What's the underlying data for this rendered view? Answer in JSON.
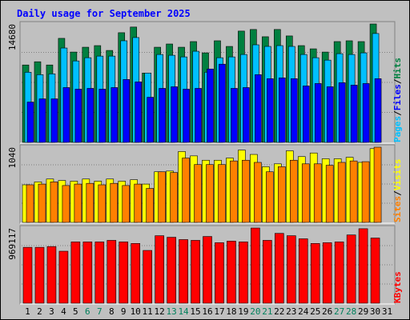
{
  "chart_data": {
    "type": "bar",
    "title": "Daily usage for September 2025",
    "days": [
      "1",
      "2",
      "3",
      "4",
      "5",
      "6",
      "7",
      "8",
      "9",
      "10",
      "11",
      "12",
      "13",
      "14",
      "15",
      "16",
      "17",
      "18",
      "19",
      "20",
      "21",
      "22",
      "23",
      "24",
      "25",
      "26",
      "27",
      "28",
      "29",
      "30",
      "31"
    ],
    "weekend_days": [
      "6",
      "7",
      "13",
      "14",
      "20",
      "21",
      "27",
      "28"
    ],
    "panels": [
      {
        "id": "hits-files-pages",
        "ymax_label": "14680",
        "ymax": 14680,
        "legend": [
          "Pages",
          "/",
          "Files",
          "/",
          "Hits"
        ],
        "series": [
          {
            "name": "Hits",
            "color": "#008040",
            "values": [
              9600,
              10000,
              9600,
              12900,
              11200,
              11800,
              12000,
              11400,
              13600,
              14300,
              8600,
              11800,
              12200,
              11800,
              12500,
              11100,
              12600,
              11900,
              13800,
              14000,
              13100,
              14000,
              13200,
              12000,
              11600,
              11200,
              12500,
              12600,
              12500,
              14680,
              null
            ]
          },
          {
            "name": "Files",
            "color": "#00c0ff",
            "values": [
              8700,
              8400,
              8500,
              11700,
              10100,
              10500,
              10700,
              10700,
              12600,
              13000,
              8600,
              10900,
              10800,
              10600,
              11300,
              8700,
              10500,
              10600,
              10900,
              12100,
              11900,
              12000,
              11900,
              10900,
              10500,
              10200,
              11000,
              10900,
              11100,
              13500,
              null
            ]
          },
          {
            "name": "Pages",
            "color": "#0000ff",
            "values": [
              5000,
              5400,
              5400,
              6800,
              6600,
              6700,
              6600,
              6800,
              7800,
              7500,
              5600,
              6700,
              6900,
              6600,
              6700,
              9100,
              9700,
              6700,
              6800,
              8400,
              7900,
              8000,
              7900,
              7000,
              7300,
              6900,
              7400,
              7100,
              7300,
              7900,
              null
            ]
          }
        ]
      },
      {
        "id": "visits-sites",
        "ymax_label": "1040",
        "ymax": 1040,
        "legend": [
          "Sites",
          "/",
          "Visits"
        ],
        "series": [
          {
            "name": "Visits",
            "color": "#ffff00",
            "values": [
              520,
              560,
              600,
              580,
              570,
              600,
              570,
              600,
              570,
              590,
              530,
              700,
              710,
              980,
              920,
              860,
              860,
              890,
              1000,
              940,
              770,
              810,
              990,
              910,
              960,
              880,
              880,
              900,
              830,
              1020,
              null
            ]
          },
          {
            "name": "Sites",
            "color": "#ff8000",
            "values": [
              520,
              530,
              560,
              510,
              530,
              540,
              520,
              540,
              510,
              530,
              470,
              700,
              690,
              890,
              800,
              800,
              800,
              850,
              860,
              830,
              700,
              770,
              860,
              810,
              810,
              790,
              830,
              850,
              840,
              1040,
              null
            ]
          }
        ]
      },
      {
        "id": "kbytes",
        "ymax_label": "969117",
        "ymax": 969117,
        "legend": [
          "KBytes"
        ],
        "series": [
          {
            "name": "KBytes",
            "color": "#ff0000",
            "values": [
              720000,
              720000,
              730000,
              670000,
              790000,
              790000,
              790000,
              810000,
              790000,
              770000,
              680000,
              870000,
              850000,
              820000,
              810000,
              860000,
              780000,
              800000,
              790000,
              969117,
              810000,
              900000,
              870000,
              830000,
              770000,
              780000,
              790000,
              880000,
              960000,
              840000,
              null
            ]
          }
        ]
      }
    ]
  },
  "colors": {
    "background": "#c0c0c0",
    "panel_bg": "#c0c0c0",
    "gridline": "#808080",
    "title": "#0000ff",
    "weekend_label": "#00805c",
    "weekday_label": "#000000"
  }
}
